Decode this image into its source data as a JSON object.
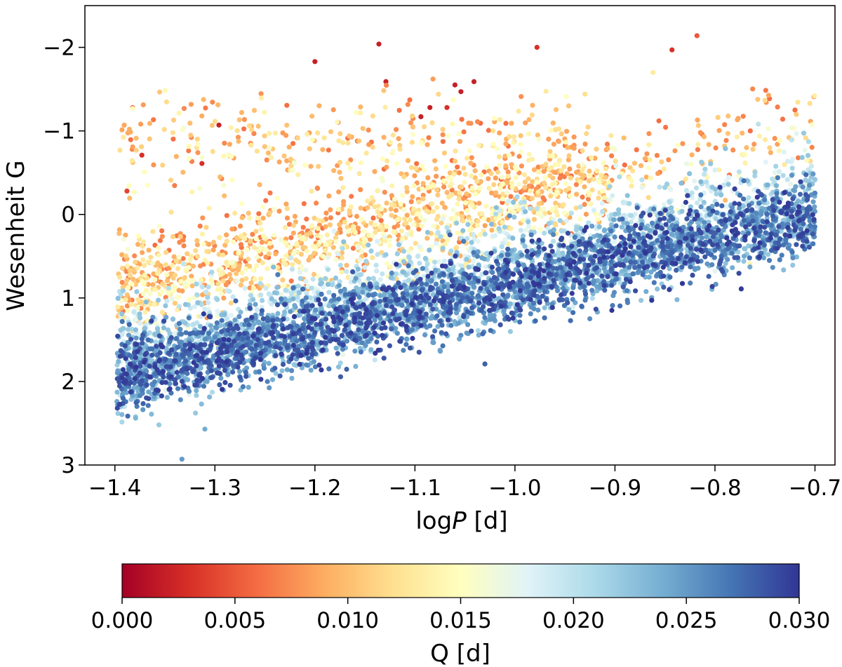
{
  "chart_data": {
    "type": "scatter",
    "title": "",
    "xlabel_prefix": "log",
    "xlabel_italic": "P",
    "xlabel_suffix": " [d]",
    "ylabel": "Wesenheit G",
    "xlim": [
      -1.43,
      -0.68
    ],
    "ylim": [
      3.0,
      -2.5
    ],
    "y_inverted": true,
    "x_ticks": [
      -1.4,
      -1.3,
      -1.2,
      -1.1,
      -1.0,
      -0.9,
      -0.8,
      -0.7
    ],
    "x_tick_labels": [
      "−1.4",
      "−1.3",
      "−1.2",
      "−1.1",
      "−1.0",
      "−0.9",
      "−0.8",
      "−0.7"
    ],
    "y_ticks": [
      -2,
      -1,
      0,
      1,
      2,
      3
    ],
    "y_tick_labels": [
      "−2",
      "−1",
      "0",
      "1",
      "2",
      "3"
    ],
    "grid": false,
    "color_variable": "Q [d]",
    "colormap": "RdYlBu",
    "colorbar": {
      "label": "Q [d]",
      "range": [
        0.0,
        0.03
      ],
      "ticks": [
        0.0,
        0.005,
        0.01,
        0.015,
        0.02,
        0.025,
        0.03
      ],
      "tick_labels": [
        "0.000",
        "0.005",
        "0.010",
        "0.015",
        "0.020",
        "0.025",
        "0.030"
      ],
      "orientation": "horizontal",
      "stops": [
        "#a50026",
        "#d73027",
        "#f46d43",
        "#fdae61",
        "#fee090",
        "#ffffbf",
        "#e0f3f8",
        "#abd9e9",
        "#74add1",
        "#4575b4",
        "#313695"
      ]
    },
    "trend_description": "Dense cloud of ~7000 stars; blue (high Q) main sequence runs from ~1.9 at logP -1.39 to ~0.0 at logP -0.70; orange/yellow (low Q) stars lie ~0.9 mag brighter",
    "outliers": [
      {
        "x": -1.388,
        "y": -0.28,
        "q": 0.004
      },
      {
        "x": -1.373,
        "y": -0.71,
        "q": 0.003
      },
      {
        "x": -1.313,
        "y": -0.61,
        "q": 0.003
      },
      {
        "x": -1.296,
        "y": -1.07,
        "q": 0.002
      },
      {
        "x": -1.2,
        "y": -1.83,
        "q": 0.002
      },
      {
        "x": -1.136,
        "y": -2.04,
        "q": 0.002
      },
      {
        "x": -1.129,
        "y": -1.59,
        "q": 0.002
      },
      {
        "x": -1.094,
        "y": -1.17,
        "q": 0.002
      },
      {
        "x": -1.085,
        "y": -1.28,
        "q": 0.002
      },
      {
        "x": -1.068,
        "y": -1.28,
        "q": 0.003
      },
      {
        "x": -1.06,
        "y": -1.55,
        "q": 0.002
      },
      {
        "x": -1.054,
        "y": -1.47,
        "q": 0.002
      },
      {
        "x": -1.041,
        "y": -1.59,
        "q": 0.002
      },
      {
        "x": -0.978,
        "y": -2.0,
        "q": 0.003
      },
      {
        "x": -0.843,
        "y": -1.97,
        "q": 0.003
      },
      {
        "x": -0.818,
        "y": -2.14,
        "q": 0.005
      },
      {
        "x": -0.701,
        "y": -1.41,
        "q": 0.008
      },
      {
        "x": -0.72,
        "y": -1.25,
        "q": 0.006
      },
      {
        "x": -0.856,
        "y": -1.12,
        "q": 0.006
      },
      {
        "x": -0.93,
        "y": -1.44,
        "q": 0.012
      },
      {
        "x": -0.862,
        "y": -1.7,
        "q": 0.013
      },
      {
        "x": -1.333,
        "y": 2.93,
        "q": 0.025
      },
      {
        "x": -1.356,
        "y": 2.52,
        "q": 0.022
      },
      {
        "x": -1.31,
        "y": 2.57,
        "q": 0.024
      },
      {
        "x": -1.03,
        "y": 1.79,
        "q": 0.028
      },
      {
        "x": -0.765,
        "y": 0.59,
        "q": 0.014
      }
    ]
  }
}
